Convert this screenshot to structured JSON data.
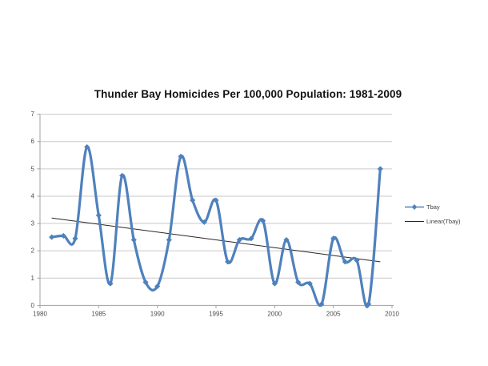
{
  "chart": {
    "title": "Thunder Bay Homicides Per 100,000 Population: 1981-2009"
  },
  "legend": {
    "items": [
      {
        "label": "Tbay",
        "swatch": "line-with-diamond",
        "color": "#4F81BD"
      },
      {
        "label": "Linear(Tbay)",
        "swatch": "line",
        "color": "#262626"
      }
    ]
  },
  "chart_data": {
    "type": "line",
    "title": "Thunder Bay Homicides Per 100,000 Population: 1981-2009",
    "smoothed": true,
    "marker": "diamond",
    "grid": true,
    "legend_position": "right",
    "series_color": "#4F81BD",
    "trend_color": "#262626",
    "gridline_color": "#c9c9c9",
    "axis_color": "#a0a0a0",
    "label_color": "#4d4d4d",
    "x": [
      1981,
      1982,
      1983,
      1984,
      1985,
      1986,
      1987,
      1988,
      1989,
      1990,
      1991,
      1992,
      1993,
      1994,
      1995,
      1996,
      1997,
      1998,
      1999,
      2000,
      2001,
      2002,
      2003,
      2004,
      2005,
      2006,
      2007,
      2008,
      2009
    ],
    "series": [
      {
        "name": "Tbay",
        "values": [
          2.5,
          2.55,
          2.45,
          5.8,
          3.3,
          0.8,
          4.75,
          2.4,
          0.85,
          0.7,
          2.4,
          5.45,
          3.85,
          3.05,
          3.85,
          1.6,
          2.4,
          2.45,
          3.1,
          0.8,
          2.4,
          0.85,
          0.8,
          0.05,
          2.45,
          1.6,
          1.65,
          0.05,
          5.0
        ]
      }
    ],
    "trend": {
      "name": "Linear(Tbay)",
      "start_x": 1981,
      "start_y": 3.2,
      "end_x": 2009,
      "end_y": 1.6
    },
    "x_axis": {
      "min": 1980,
      "max": 2010,
      "ticks": [
        1980,
        1985,
        1990,
        1995,
        2000,
        2005,
        2010
      ]
    },
    "y_axis": {
      "min": 0,
      "max": 7,
      "ticks": [
        0,
        1,
        2,
        3,
        4,
        5,
        6,
        7
      ]
    },
    "xlabel": "",
    "ylabel": ""
  }
}
